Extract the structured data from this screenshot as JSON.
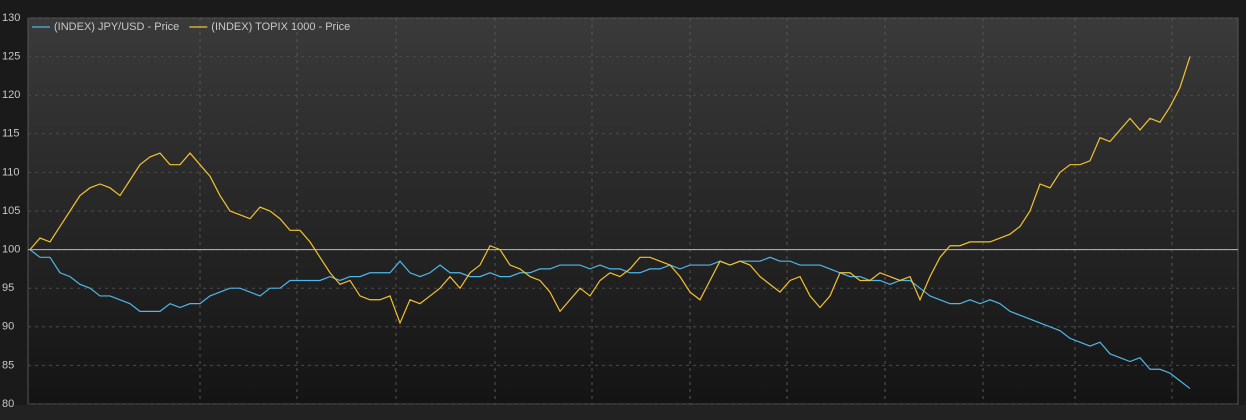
{
  "chart_data": {
    "type": "line",
    "series": [
      {
        "name": "(INDEX) JPY/USD - Price",
        "color": "#4fb6e8",
        "values": [
          100,
          99,
          99,
          97,
          96.5,
          95.5,
          95,
          94,
          94,
          93.5,
          93,
          92,
          92,
          92,
          93,
          92.5,
          93,
          93,
          94,
          94.5,
          95,
          95,
          94.5,
          94,
          95,
          95,
          96,
          96,
          96,
          96,
          96.5,
          96,
          96.5,
          96.5,
          97,
          97,
          97,
          98.5,
          97,
          96.5,
          97,
          98,
          97,
          97,
          96.5,
          96.5,
          97,
          96.5,
          96.5,
          97,
          97,
          97.5,
          97.5,
          98,
          98,
          98,
          97.5,
          98,
          97.5,
          97.5,
          97,
          97,
          97.5,
          97.5,
          98,
          97.5,
          98,
          98,
          98,
          98.5,
          98,
          98.5,
          98.5,
          98.5,
          99,
          98.5,
          98.5,
          98,
          98,
          98,
          97.5,
          97,
          96.5,
          96.5,
          96,
          96,
          95.5,
          96,
          96,
          95,
          94,
          93.5,
          93,
          93,
          93.5,
          93,
          93.5,
          93,
          92,
          91.5,
          91,
          90.5,
          90,
          89.5,
          88.5,
          88,
          87.5,
          88,
          86.5,
          86,
          85.5,
          86,
          84.5,
          84.5,
          84,
          83,
          82
        ]
      },
      {
        "name": "(INDEX) TOPIX 1000 - Price",
        "color": "#f2c230",
        "values": [
          100,
          101.5,
          101,
          103,
          105,
          107,
          108,
          108.5,
          108,
          107,
          109,
          111,
          112,
          112.5,
          111,
          111,
          112.5,
          111,
          109.5,
          107,
          105,
          104.5,
          104,
          105.5,
          105,
          104,
          102.5,
          102.5,
          101,
          99,
          97,
          95.5,
          96,
          94,
          93.5,
          93.5,
          94,
          90.5,
          93.5,
          93,
          94,
          95,
          96.5,
          95,
          97,
          98,
          100.5,
          100,
          98,
          97.5,
          96.5,
          96,
          94.5,
          92,
          93.5,
          95,
          94,
          96,
          97,
          96.5,
          97.5,
          99,
          99,
          98.5,
          98,
          96.5,
          94.5,
          93.5,
          96,
          98.5,
          98,
          98.5,
          98,
          96.5,
          95.5,
          94.5,
          96,
          96.5,
          94,
          92.5,
          94,
          97,
          97,
          96,
          96,
          97,
          96.5,
          96,
          96.5,
          93.5,
          96.5,
          99,
          100.5,
          100.5,
          101,
          101,
          101,
          101.5,
          102,
          103,
          105,
          108.5,
          108,
          110,
          111,
          111,
          111.5,
          114.5,
          114,
          115.5,
          117,
          115.5,
          117,
          116.5,
          118.5,
          121,
          125
        ]
      }
    ],
    "ylim": [
      80,
      130
    ],
    "yticks": [
      80,
      85,
      90,
      95,
      100,
      105,
      110,
      115,
      120,
      125,
      130
    ],
    "reference_line": 100,
    "grid": true,
    "legend": "top-left"
  }
}
